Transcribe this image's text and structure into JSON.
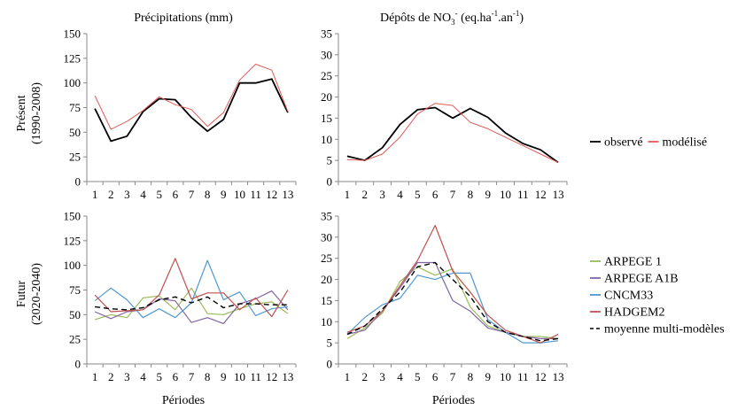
{
  "row_labels": [
    [
      "Présent",
      "(1990-2008)"
    ],
    [
      "Futur",
      "(2020-2040)"
    ]
  ],
  "col_titles": {
    "precip": "Précipitations (mm)",
    "no3_prefix": "Dépôts de NO",
    "no3_sub": "3",
    "no3_sup": "-",
    "no3_mid": " (eq.ha",
    "no3_unit_sup1": "-1",
    "no3_dot": ".an",
    "no3_unit_sup2": "-1",
    "no3_end": ")"
  },
  "xlabel": "Périodes",
  "legend_top": [
    {
      "name": "observé",
      "color": "#000000",
      "dash": false
    },
    {
      "name": "modélisé",
      "color": "#e05a55",
      "dash": false
    }
  ],
  "legend_bottom": [
    {
      "name": "ARPEGE 1",
      "color": "#9bbb59",
      "dash": false
    },
    {
      "name": "ARPEGE A1B",
      "color": "#8064a2",
      "dash": false
    },
    {
      "name": "CNCM33",
      "color": "#4f98d1",
      "dash": false
    },
    {
      "name": "HADGEM2",
      "color": "#c0504d",
      "dash": false
    },
    {
      "name": "moyenne multi-modèles",
      "color": "#000000",
      "dash": true
    }
  ],
  "chart_data": [
    {
      "type": "line",
      "id": "present-precip",
      "title": "Précipitations (mm)",
      "ylabel": "Présent (1990-2008)",
      "categories": [
        1,
        2,
        3,
        4,
        5,
        6,
        7,
        8,
        9,
        10,
        11,
        12,
        13
      ],
      "ylim": [
        0,
        150
      ],
      "yticks": [
        0,
        25,
        50,
        75,
        100,
        125,
        150
      ],
      "series": [
        {
          "name": "observé",
          "color": "#000000",
          "dash": false,
          "width": 1.8,
          "values": [
            74,
            41,
            46,
            71,
            84,
            83,
            65,
            51,
            63,
            100,
            100,
            104,
            70
          ]
        },
        {
          "name": "modélisé",
          "color": "#e05a55",
          "dash": false,
          "width": 1.0,
          "values": [
            87,
            53,
            61,
            72,
            86,
            78,
            73,
            56,
            70,
            103,
            119,
            113,
            71
          ]
        }
      ]
    },
    {
      "type": "line",
      "id": "present-no3",
      "title": "Dépôts de NO3- (eq.ha-1.an-1)",
      "categories": [
        1,
        2,
        3,
        4,
        5,
        6,
        7,
        8,
        9,
        10,
        11,
        12,
        13
      ],
      "ylim": [
        0,
        35
      ],
      "yticks": [
        0,
        5,
        10,
        15,
        20,
        25,
        30,
        35
      ],
      "series": [
        {
          "name": "observé",
          "color": "#000000",
          "dash": false,
          "width": 1.8,
          "values": [
            6,
            5,
            8,
            13.5,
            17,
            17.5,
            15,
            17.3,
            15.2,
            11.5,
            9,
            7.5,
            4.5
          ]
        },
        {
          "name": "modélisé",
          "color": "#e05a55",
          "dash": false,
          "width": 1.0,
          "values": [
            5.2,
            5,
            6.5,
            10.5,
            16,
            18.5,
            18,
            14,
            12.5,
            10.5,
            8.5,
            6.5,
            4.5
          ]
        }
      ]
    },
    {
      "type": "line",
      "id": "future-precip",
      "ylabel": "Futur (2020-2040)",
      "xlabel": "Périodes",
      "categories": [
        1,
        2,
        3,
        4,
        5,
        6,
        7,
        8,
        9,
        10,
        11,
        12,
        13
      ],
      "ylim": [
        0,
        150
      ],
      "yticks": [
        0,
        25,
        50,
        75,
        100,
        125,
        150
      ],
      "series": [
        {
          "name": "ARPEGE 1",
          "color": "#9bbb59",
          "dash": false,
          "width": 1.2,
          "values": [
            45,
            50,
            47,
            67,
            69,
            55,
            77,
            51,
            50,
            56,
            61,
            63,
            51
          ]
        },
        {
          "name": "ARPEGE A1B",
          "color": "#8064a2",
          "dash": false,
          "width": 1.2,
          "values": [
            53,
            46,
            53,
            55,
            66,
            64,
            42,
            47,
            41,
            61,
            66,
            74,
            55
          ]
        },
        {
          "name": "CNCM33",
          "color": "#4f98d1",
          "dash": false,
          "width": 1.2,
          "values": [
            64,
            77,
            65,
            47,
            56,
            47,
            62,
            105,
            65,
            73,
            49,
            56,
            58
          ]
        },
        {
          "name": "HADGEM2",
          "color": "#c0504d",
          "dash": false,
          "width": 1.2,
          "values": [
            70,
            53,
            54,
            55,
            70,
            107,
            66,
            72,
            72,
            55,
            67,
            48,
            75
          ]
        },
        {
          "name": "moyenne multi-modèles",
          "color": "#000000",
          "dash": true,
          "width": 1.4,
          "values": [
            58,
            56,
            55,
            57,
            65,
            68,
            62,
            68,
            57,
            61,
            61,
            60,
            60
          ]
        }
      ]
    },
    {
      "type": "line",
      "id": "future-no3",
      "xlabel": "Périodes",
      "categories": [
        1,
        2,
        3,
        4,
        5,
        6,
        7,
        8,
        9,
        10,
        11,
        12,
        13
      ],
      "ylim": [
        0,
        35
      ],
      "yticks": [
        0,
        5,
        10,
        15,
        20,
        25,
        30,
        35
      ],
      "series": [
        {
          "name": "ARPEGE 1",
          "color": "#9bbb59",
          "dash": false,
          "width": 1.2,
          "values": [
            6,
            8.5,
            12,
            19.5,
            23,
            21,
            22.5,
            13.5,
            9,
            7.5,
            6.5,
            6.5,
            6
          ]
        },
        {
          "name": "ARPEGE A1B",
          "color": "#8064a2",
          "dash": false,
          "width": 1.2,
          "values": [
            7,
            8,
            12.5,
            18,
            24,
            24,
            15,
            12.5,
            8.5,
            7.5,
            6.5,
            6,
            6
          ]
        },
        {
          "name": "CNCM33",
          "color": "#4f98d1",
          "dash": false,
          "width": 1.2,
          "values": [
            7,
            11,
            14,
            15.5,
            21,
            20,
            21.5,
            21.5,
            10.5,
            7.5,
            5,
            5,
            5.5
          ]
        },
        {
          "name": "HADGEM2",
          "color": "#c0504d",
          "dash": false,
          "width": 1.2,
          "values": [
            7.5,
            9,
            12.5,
            18.5,
            24.5,
            32.8,
            22,
            17,
            11.5,
            8,
            6.5,
            5,
            7
          ]
        },
        {
          "name": "moyenne multi-modèles",
          "color": "#000000",
          "dash": true,
          "width": 1.4,
          "values": [
            7,
            9,
            13,
            17,
            23,
            24,
            20,
            16,
            10,
            7.5,
            6.5,
            5.5,
            6
          ]
        }
      ]
    }
  ]
}
